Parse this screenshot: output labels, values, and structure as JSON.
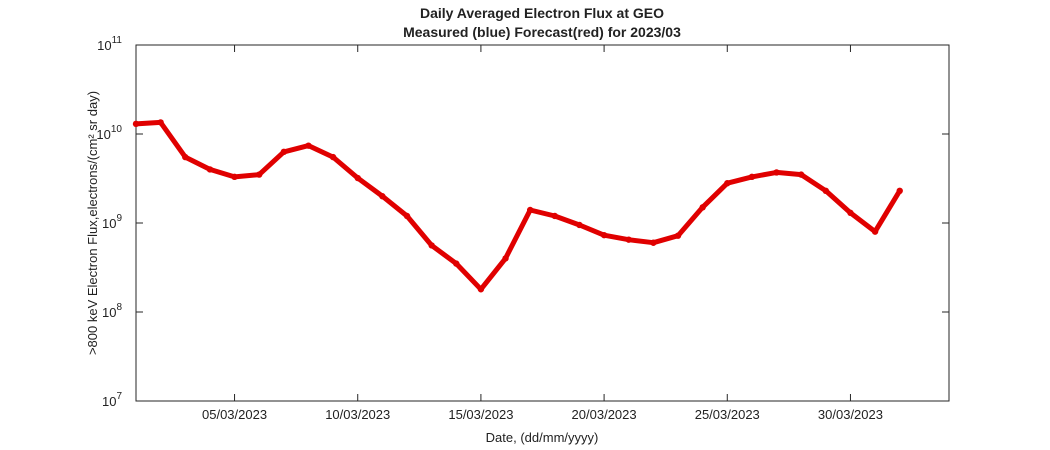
{
  "chart_data": {
    "type": "scatter",
    "title": "Daily Averaged Electron Flux at GEO",
    "subtitle": "Measured (blue) Forecast(red) for 2023/03",
    "x_label": "Date, (dd/mm/yyyy)",
    "y_label": ">800 keV Electron Flux,electrons/(cm² sr day)",
    "log_y": true,
    "grid": false,
    "x": [
      "2023-03-01",
      "2023-03-02",
      "2023-03-03",
      "2023-03-04",
      "2023-03-05",
      "2023-03-06",
      "2023-03-07",
      "2023-03-08",
      "2023-03-09",
      "2023-03-10",
      "2023-03-11",
      "2023-03-12",
      "2023-03-13",
      "2023-03-14",
      "2023-03-15",
      "2023-03-16",
      "2023-03-17",
      "2023-03-18",
      "2023-03-19",
      "2023-03-20",
      "2023-03-21",
      "2023-03-22",
      "2023-03-23",
      "2023-03-24",
      "2023-03-25",
      "2023-03-26",
      "2023-03-27",
      "2023-03-28",
      "2023-03-29",
      "2023-03-30",
      "2023-03-31",
      "2023-04-01"
    ],
    "series": [
      {
        "name": "Forecast",
        "color": "#e00000",
        "values": [
          13000000000,
          13500000000,
          5500000000,
          4000000000,
          3300000000,
          3500000000,
          6300000000,
          7400000000,
          5500000000,
          3200000000,
          2000000000,
          1200000000,
          560000000,
          350000000,
          180000000,
          400000000,
          1400000000,
          1200000000,
          950000000,
          730000000,
          650000000,
          600000000,
          720000000,
          1500000000,
          2800000000,
          3300000000,
          3700000000,
          3500000000,
          2300000000,
          1300000000,
          800000000,
          2300000000
        ]
      }
    ],
    "xlim": [
      "2023-03-01",
      "2023-04-03"
    ],
    "xticks": [
      {
        "value": "2023-03-05",
        "label": "05/03/2023"
      },
      {
        "value": "2023-03-10",
        "label": "10/03/2023"
      },
      {
        "value": "2023-03-15",
        "label": "15/03/2023"
      },
      {
        "value": "2023-03-20",
        "label": "20/03/2023"
      },
      {
        "value": "2023-03-25",
        "label": "25/03/2023"
      },
      {
        "value": "2023-03-30",
        "label": "30/03/2023"
      }
    ],
    "ylim": [
      10000000,
      100000000000
    ],
    "yticks": [
      {
        "value": 10000000,
        "label": "10",
        "exponent": "7"
      },
      {
        "value": 100000000,
        "label": "10",
        "exponent": "8"
      },
      {
        "value": 1000000000,
        "label": "10",
        "exponent": "9"
      },
      {
        "value": 10000000000,
        "label": "10",
        "exponent": "10"
      },
      {
        "value": 100000000000,
        "label": "10",
        "exponent": "11"
      }
    ]
  }
}
